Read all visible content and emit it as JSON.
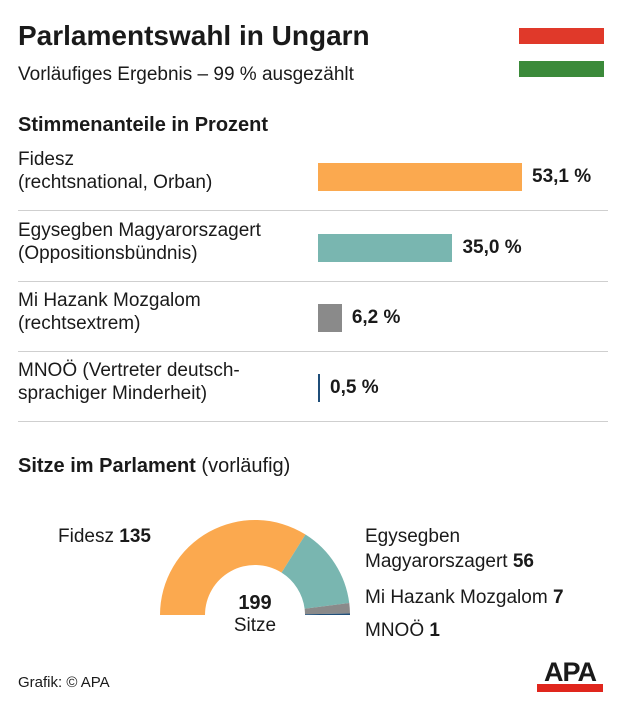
{
  "header": {
    "title": "Parlamentswahl in Ungarn",
    "subtitle": "Vorläufiges Ergebnis – 99 % ausgezählt",
    "flag_colors": [
      "#e0392a",
      "#ffffff",
      "#3b8a3a"
    ]
  },
  "chart_data": [
    {
      "type": "bar",
      "title": "Stimmenanteile in Prozent",
      "unit": "%",
      "categories": [
        [
          "Fidesz",
          "(rechtsnational, Orban)"
        ],
        [
          "Egysegben Magyarorszagert",
          "(Oppositionsbündnis)"
        ],
        [
          "Mi Hazank Mozgalom",
          "(rechtsextrem)"
        ],
        [
          "MNOÖ (Vertreter deutsch-",
          "sprachiger Minderheit)"
        ]
      ],
      "values": [
        53.1,
        35.0,
        6.2,
        0.5
      ],
      "labels": [
        "53,1 %",
        "35,0 %",
        "6,2 %",
        "0,5 %"
      ],
      "colors": [
        "#fba94f",
        "#79b6b0",
        "#8a8a8a",
        "#1f4e79"
      ]
    },
    {
      "type": "pie",
      "title": "Sitze im Parlament",
      "title_suffix": "(vorläufig)",
      "total": 199,
      "total_label": "Sitze",
      "slices": [
        {
          "name": "Fidesz",
          "value": 135,
          "color": "#fba94f"
        },
        {
          "name": "Egysegben Magyarorszagert",
          "value": 56,
          "color": "#79b6b0"
        },
        {
          "name": "Mi Hazank Mozgalom",
          "value": 7,
          "color": "#8a8a8a"
        },
        {
          "name": "MNOÖ",
          "value": 1,
          "color": "#1f4e79"
        }
      ]
    }
  ],
  "footer": {
    "credit": "Grafik: © APA",
    "logo": "APA"
  }
}
